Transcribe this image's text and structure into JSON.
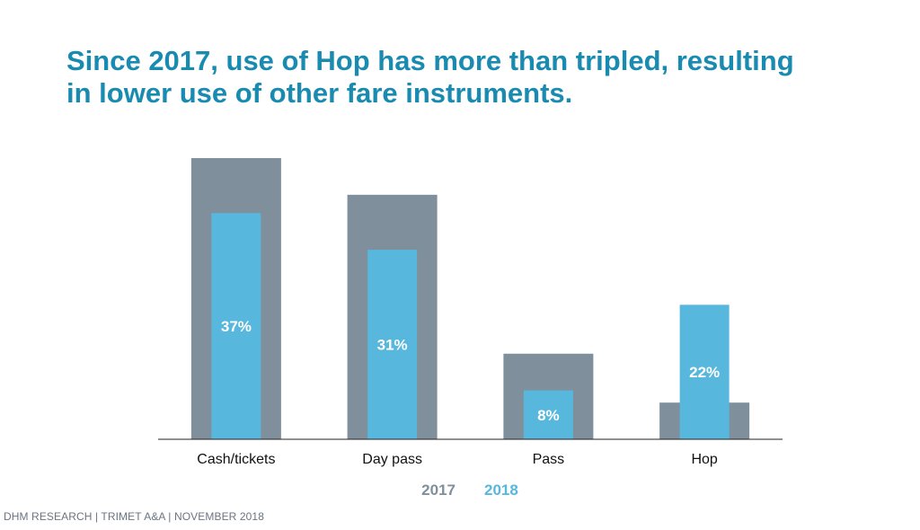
{
  "title": {
    "line1": "Since 2017, use of Hop has more than tripled, resulting",
    "line2": "in lower use of other fare instruments."
  },
  "legend": {
    "label_2017": "2017",
    "label_2018": "2018"
  },
  "footer": "DHM RESEARCH | TRIMET A&A | NOVEMBER 2018",
  "colors": {
    "series_2017": "#7f909c",
    "series_2018": "#57b7dd",
    "title": "#1a8bb0"
  },
  "chart_data": {
    "type": "bar",
    "categories": [
      "Cash/tickets",
      "Day pass",
      "Pass",
      "Hop"
    ],
    "series": [
      {
        "name": "2017",
        "values": [
          46,
          40,
          14,
          6
        ]
      },
      {
        "name": "2018",
        "values": [
          37,
          31,
          8,
          22
        ],
        "labels": [
          "37%",
          "31%",
          "8%",
          "22%"
        ]
      }
    ],
    "ylim": [
      0,
      46
    ],
    "legend_position": "bottom-center",
    "grid": false
  }
}
